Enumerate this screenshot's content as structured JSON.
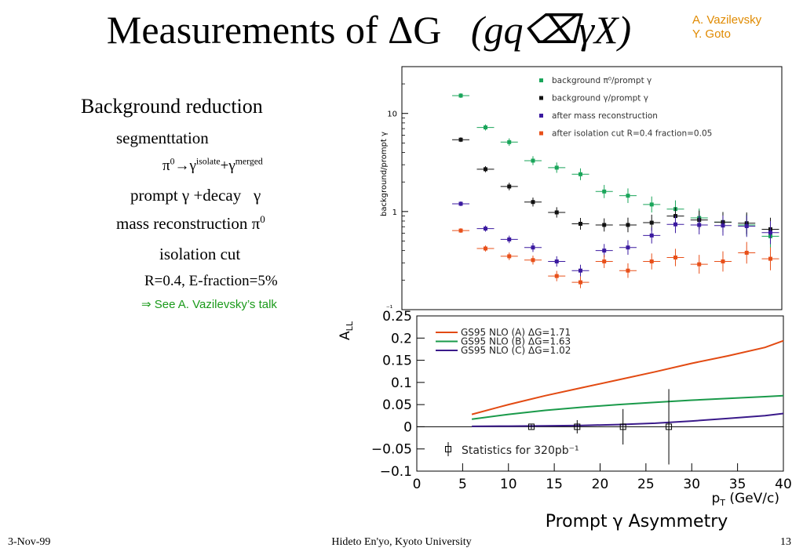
{
  "slide": {
    "title_main": "Measurements of ΔG",
    "title_process": "(gq⌫γX)",
    "authors": [
      "A. Vazilevsky",
      "Y. Goto"
    ],
    "bullets": {
      "heading": "Background reduction",
      "segmentation": "segmenttation",
      "pi0_decay": {
        "base1": "π",
        "sup1": "0",
        "arrow": "→γ",
        "sup2": "isolate",
        "plus": "+γ",
        "sup3": "merged"
      },
      "prompt_decay": "prompt γ +decay   γ",
      "mass_reco": {
        "text": "mass reconstruction π",
        "sup": "0"
      },
      "isolation": "isolation cut",
      "params": "R=0.4, E-fraction=5%",
      "reference": "⇒ See A. Vazilevsky’s  talk"
    },
    "footer": {
      "date": "3-Nov-99",
      "center": "Hideto En'yo, Kyoto University",
      "page": "13"
    }
  },
  "chart_data": [
    {
      "type": "scatter",
      "ylabel": "background/prompt γ",
      "yscale": "log",
      "ylim": [
        0.1,
        30
      ],
      "xlim": [
        0,
        40
      ],
      "yticks": [
        "10",
        "1"
      ],
      "ytick_values": [
        10,
        1
      ],
      "ymin_label": "⁻¹",
      "grid": false,
      "legend_position": "top-right",
      "series": [
        {
          "name": "background π⁰/prompt γ",
          "color": "#1aa55a",
          "x": [
            6.2,
            8.8,
            11.3,
            13.8,
            16.3,
            18.8,
            21.3,
            23.8,
            26.3,
            28.8,
            31.3,
            33.8,
            36.3,
            38.8
          ],
          "y": [
            15.2,
            7.2,
            5.1,
            3.3,
            2.8,
            2.4,
            1.6,
            1.45,
            1.18,
            1.06,
            0.86,
            0.78,
            0.73,
            0.56
          ]
        },
        {
          "name": "background γ/prompt γ",
          "color": "#111111",
          "x": [
            6.2,
            8.8,
            11.3,
            13.8,
            16.3,
            18.8,
            21.3,
            23.8,
            26.3,
            28.8,
            31.3,
            33.8,
            36.3,
            38.8
          ],
          "y": [
            5.4,
            2.7,
            1.8,
            1.25,
            0.98,
            0.75,
            0.73,
            0.73,
            0.77,
            0.9,
            0.82,
            0.78,
            0.76,
            0.66
          ]
        },
        {
          "name": "after mass reconstruction",
          "color": "#3b1aa0",
          "x": [
            6.2,
            8.8,
            11.3,
            13.8,
            16.3,
            18.8,
            21.3,
            23.8,
            26.3,
            28.8,
            31.3,
            33.8,
            36.3,
            38.8
          ],
          "y": [
            1.2,
            0.67,
            0.52,
            0.43,
            0.31,
            0.25,
            0.4,
            0.43,
            0.57,
            0.74,
            0.73,
            0.72,
            0.71,
            0.61
          ]
        },
        {
          "name": "after isolation cut R=0.4 fraction=0.05",
          "color": "#e8501a",
          "x": [
            6.2,
            8.8,
            11.3,
            13.8,
            16.3,
            18.8,
            21.3,
            23.8,
            26.3,
            28.8,
            31.3,
            33.8,
            36.3,
            38.8
          ],
          "y": [
            0.64,
            0.42,
            0.35,
            0.32,
            0.22,
            0.19,
            0.31,
            0.25,
            0.31,
            0.34,
            0.29,
            0.31,
            0.38,
            0.33
          ]
        }
      ]
    },
    {
      "type": "line",
      "title": "Prompt γ Asymmetry",
      "ylabel": "A_LL",
      "xlabel": "p_T (GeV/c)",
      "xlim": [
        0,
        40
      ],
      "ylim": [
        -0.1,
        0.25
      ],
      "xticks": [
        "0",
        "5",
        "10",
        "15",
        "20",
        "25",
        "30",
        "35",
        "40"
      ],
      "yticks": [
        "0.25",
        "0.2",
        "0.15",
        "0.1",
        "0.05",
        "0",
        "−0.05",
        "−0.1"
      ],
      "ytick_values": [
        0.25,
        0.2,
        0.15,
        0.1,
        0.05,
        0,
        -0.05,
        -0.1
      ],
      "grid": false,
      "legend_position": "top-left",
      "series": [
        {
          "name": "GS95 NLO (A) ΔG=1.71",
          "color": "#e24a12",
          "x": [
            6,
            10,
            14,
            18,
            22,
            26,
            30,
            34,
            38,
            40
          ],
          "y": [
            0.028,
            0.05,
            0.07,
            0.088,
            0.106,
            0.124,
            0.143,
            0.16,
            0.179,
            0.194
          ]
        },
        {
          "name": "GS95 NLO (B) ΔG=1.63",
          "color": "#1a9a4a",
          "x": [
            6,
            10,
            14,
            18,
            22,
            26,
            30,
            34,
            38,
            40
          ],
          "y": [
            0.017,
            0.028,
            0.037,
            0.044,
            0.05,
            0.055,
            0.06,
            0.064,
            0.068,
            0.07
          ]
        },
        {
          "name": "GS95 NLO (C) ΔG=1.02",
          "color": "#3a1a8a",
          "x": [
            6,
            10,
            14,
            18,
            22,
            26,
            30,
            34,
            38,
            40
          ],
          "y": [
            0.001,
            0.0015,
            0.002,
            0.003,
            0.005,
            0.008,
            0.013,
            0.019,
            0.025,
            0.03
          ]
        }
      ],
      "data_points": {
        "name": "Statistics for 320pb⁻¹",
        "x": [
          12.5,
          17.5,
          22.5,
          27.5
        ],
        "y": [
          0,
          0,
          0,
          0
        ],
        "err": [
          0.005,
          0.015,
          0.04,
          0.085
        ]
      }
    }
  ]
}
